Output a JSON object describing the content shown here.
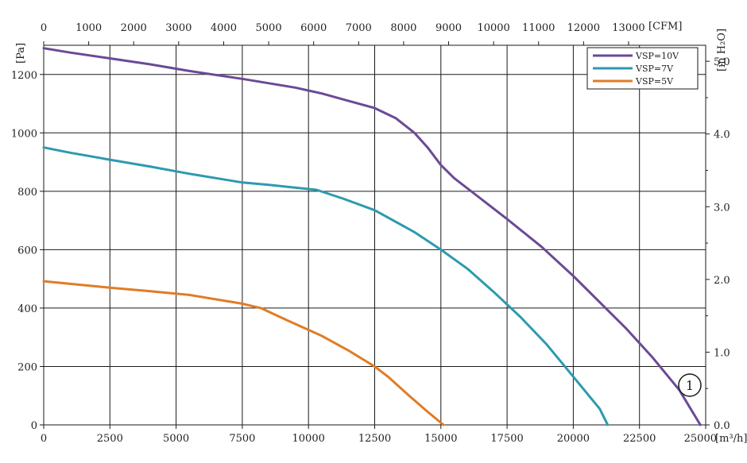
{
  "chart_data": {
    "type": "line",
    "x_axis": {
      "unit_label": "[m³/h]",
      "ticks": [
        "0",
        "2500",
        "5000",
        "7500",
        "10000",
        "12500",
        "15000",
        "17500",
        "20000",
        "22500",
        "25000"
      ],
      "range": [
        0,
        25000
      ]
    },
    "x2_axis": {
      "unit_label": "[CFM]",
      "ticks": [
        "0",
        "1000",
        "2000",
        "3000",
        "4000",
        "5000",
        "6000",
        "7000",
        "8000",
        "9000",
        "10000",
        "11000",
        "12000",
        "13000"
      ],
      "range": [
        0,
        14714
      ]
    },
    "y_axis": {
      "unit_label": "[Pa]",
      "ticks": [
        "0",
        "200",
        "400",
        "600",
        "800",
        "1000",
        "1200"
      ],
      "range": [
        0,
        1300
      ]
    },
    "y2_axis": {
      "unit_label": "[in H₂O]",
      "ticks": [
        "0.0",
        "1.0",
        "2.0",
        "3.0",
        "4.0",
        "5.0"
      ],
      "range": [
        0,
        5.22
      ]
    },
    "series": [
      {
        "name": "VSP=10V",
        "color": "#6a4a96",
        "x": [
          0,
          1000,
          2500,
          4000,
          5500,
          7500,
          9500,
          10500,
          11500,
          12500,
          13300,
          14000,
          14500,
          15000,
          15500,
          16500,
          17500,
          18800,
          20000,
          21000,
          22000,
          23000,
          24000,
          24800
        ],
        "y": [
          1290,
          1275,
          1255,
          1235,
          1212,
          1185,
          1155,
          1135,
          1110,
          1085,
          1050,
          1000,
          950,
          890,
          845,
          775,
          705,
          610,
          510,
          420,
          330,
          230,
          120,
          0
        ]
      },
      {
        "name": "VSP=7V",
        "color": "#2d9aae",
        "x": [
          0,
          1000,
          2500,
          4000,
          5500,
          7500,
          8500,
          10300,
          11300,
          12500,
          14000,
          15000,
          16000,
          17000,
          18000,
          19000,
          20000,
          21000,
          21300
        ],
        "y": [
          950,
          932,
          908,
          885,
          860,
          830,
          822,
          805,
          775,
          735,
          660,
          600,
          535,
          455,
          370,
          275,
          165,
          55,
          0
        ]
      },
      {
        "name": "VSP=5V",
        "color": "#e07c26",
        "x": [
          0,
          1000,
          2500,
          4000,
          5500,
          7500,
          8200,
          9200,
          10500,
          11500,
          12500,
          13000,
          13800,
          14500,
          15100
        ],
        "y": [
          492,
          483,
          470,
          458,
          445,
          415,
          400,
          358,
          305,
          255,
          200,
          165,
          100,
          45,
          0
        ]
      }
    ],
    "annotations": [
      "①"
    ],
    "legend_position": "top-right",
    "grid": true
  }
}
